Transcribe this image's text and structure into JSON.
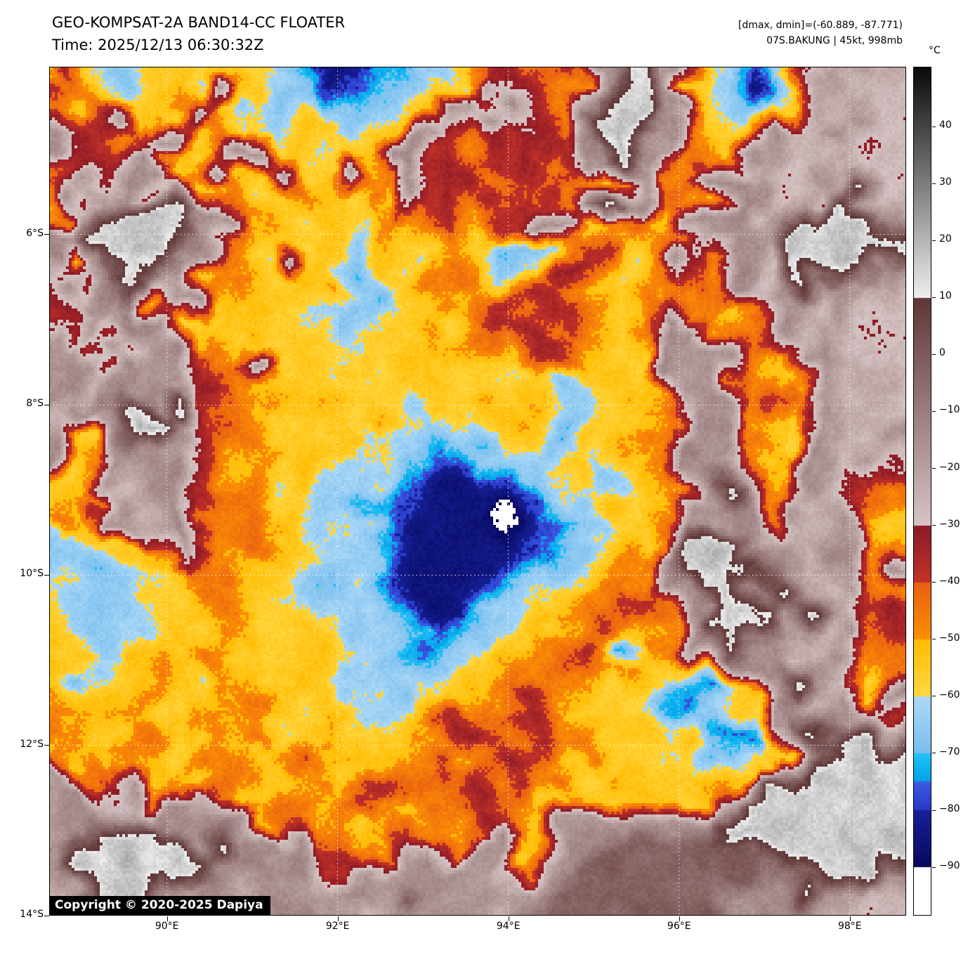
{
  "header": {
    "title": "GEO-KOMPSAT-2A BAND14-CC FLOATER",
    "time_line": "Time: 2025/12/13 06:30:32Z",
    "dmax_dmin": "[dmax, dmin]=(-60.889, -87.771)",
    "storm_line": "07S.BAKUNG | 45kt, 998mb"
  },
  "colorbar": {
    "unit_label": "°C"
  },
  "axes": {
    "lat_ticks": [
      {
        "value": 6,
        "label": "6°S"
      },
      {
        "value": 8,
        "label": "8°S"
      },
      {
        "value": 10,
        "label": "10°S"
      },
      {
        "value": 12,
        "label": "12°S"
      },
      {
        "value": 14,
        "label": "14°S"
      }
    ],
    "lon_ticks": [
      {
        "value": 90,
        "label": "90°E"
      },
      {
        "value": 92,
        "label": "92°E"
      },
      {
        "value": 94,
        "label": "94°E"
      },
      {
        "value": 96,
        "label": "96°E"
      },
      {
        "value": 98,
        "label": "98°E"
      }
    ]
  },
  "overlay": {
    "copyright": "Copyright © 2020-2025 Dapiya"
  },
  "chart_data": {
    "type": "heatmap",
    "description": "Enhanced infrared (BAND14) brightness-temperature satellite image of tropical cyclone 07S BAKUNG; cold convective cloud tops shown in yellow/orange/red through blues, warm surface in mauve/gray.",
    "satellite": "GEO-KOMPSAT-2A",
    "band": "BAND14-CC",
    "storm": {
      "id": "07S",
      "name": "BAKUNG",
      "intensity": "45kt",
      "pressure": "998mb",
      "estimated_center": {
        "lon_e": 93.3,
        "lat_s": 9.4
      }
    },
    "dmax_c": -60.889,
    "dmin_c": -87.771,
    "lat_range": [
      4.03,
      14.0
    ],
    "lon_range": [
      88.62,
      98.66
    ],
    "colorbar_ticks": [
      {
        "value": 40,
        "label": "40"
      },
      {
        "value": 30,
        "label": "30"
      },
      {
        "value": 20,
        "label": "20"
      },
      {
        "value": 10,
        "label": "10"
      },
      {
        "value": 0,
        "label": "0"
      },
      {
        "value": -10,
        "label": "−10"
      },
      {
        "value": -20,
        "label": "−20"
      },
      {
        "value": -30,
        "label": "−30"
      },
      {
        "value": -40,
        "label": "−40"
      },
      {
        "value": -50,
        "label": "−50"
      },
      {
        "value": -60,
        "label": "−60"
      },
      {
        "value": -70,
        "label": "−70"
      },
      {
        "value": -80,
        "label": "−80"
      },
      {
        "value": -90,
        "label": "−90"
      }
    ],
    "colormap": {
      "bands": [
        {
          "max": -90,
          "c1": [
            255,
            255,
            255
          ],
          "c2": [
            255,
            255,
            255
          ]
        },
        {
          "max": -80,
          "c1": [
            6,
            8,
            92
          ],
          "c2": [
            24,
            32,
            152
          ]
        },
        {
          "max": -75,
          "c1": [
            36,
            58,
            198
          ],
          "c2": [
            64,
            90,
            228
          ]
        },
        {
          "max": -70,
          "c1": [
            0,
            162,
            232
          ],
          "c2": [
            36,
            194,
            246
          ]
        },
        {
          "max": -60,
          "c1": [
            120,
            190,
            238
          ],
          "c2": [
            174,
            217,
            247
          ]
        },
        {
          "max": -50,
          "c1": [
            255,
            215,
            66
          ],
          "c2": [
            255,
            187,
            0
          ]
        },
        {
          "max": -40,
          "c1": [
            252,
            144,
            4
          ],
          "c2": [
            233,
            96,
            18
          ]
        },
        {
          "max": -30,
          "c1": [
            196,
            50,
            40
          ],
          "c2": [
            139,
            26,
            38
          ]
        },
        {
          "max": 10,
          "c1": [
            214,
            196,
            196
          ],
          "c2": [
            96,
            54,
            54
          ]
        },
        {
          "max": 50,
          "c1": [
            238,
            238,
            238
          ],
          "c2": [
            12,
            12,
            12
          ]
        }
      ]
    },
    "field": {
      "codes": {
        "N": -85,
        "B": -77,
        "c": -72,
        "b": -64,
        "y": -55,
        "o": -46,
        "r": -35,
        "p": -26,
        "m": -15,
        "d": -2,
        "g": 16,
        "E": -96
      },
      "rows": [
        "orybbyybyybcNNNNBcbbyrroommggmmycBcyppmp",
        "rooybyoymyybcNBBcbbyymrroymggmyycNBypmpp",
        "oyrmyoymybybbcbbbyymmrmromgggmmybcyyppmp",
        "mrrormmyoyybyybyymmrrmrrommgmmoyyymppmpp",
        "mrrrmooyommyybyymmrrorrormmgmmooymmppppp",
        "ormrmmyomyymyymyomrrrorrooyomoommmppmpgp",
        "omrmmrmyyoyyoyyoymrrorrromgmmooymmpmpgmp",
        "oomggggmmooyyyyyoyrryrrmmyyooymmmpmggggm",
        "mmgggggmooyyyyybyyyoybbbbrryyoommmmggggg",
        "mymgggmmoyymyybbyyyoobbyrroyyomommpggggm",
        "rmrmgmmyooyyyyybbyoooyorroyyoooommpgmmmp",
        "rrmmmymmyyyyybbbbyyoorrorroyymooyommpmpp",
        "mrmrmmyyyyyyyybyyyoyorrroroyommooompmppp",
        "mmrmrmmyoyyyyyyyyyyyooyrrooyymmmmoommppp",
        "mmmrmmmroomyyyyyyyyyyyyrroyyymmmooyomppp",
        "mmpmmmgrrooyyyyyyyyyyyyybyyyyommmoromppp",
        "pmmmgmgrooyyyyyyybyyyyyybbyyyoommooymppp",
        "myymggmrooyyyyybbbbbbyybbyyyoommmooymppm",
        "myommmmroyoyyybbbbBBbbbbyybyyommmoyompmp",
        "yyompmmroooyybbbbBNNBBbbbybbyoomgmoymprp",
        "yyyompmooooyybbcBBNNNNBBbbyyyommmmoompoo",
        "yoymmpmroooyybbbBNNNNENBcbbyyommmmompmoy",
        "bbyyyomroooyybbcBNNNNNBcbbyoyogggmmpmmoo",
        "bbbyyyooooyybbbbBNNNNBcbbyyoomggggmppmom",
        "ybbbyyyoooyybbbcBNNNBcbbyyooommggmgmpmoo",
        "ybbbbyyyooyyybbbcBNNbbbyyoorrommggmgmprr",
        "yybbbyyyooyyybbbbcBcbbyyoorooomgggmmpmor",
        "yyybyyyooyyyyybbbccbbyyoorocoommgmmpmpoo",
        "yybyyoyyooyyyybbbbbbyyooooooyyyymmmgmpyo",
        "ybyyooyyoooyyybbbbyyyoorooyyybccyymmpmym",
        "oyyooyyoooyyyyybbyrroorroyyyyccbyymmgmmr",
        "yoyyooyyoooyyyyyyoorroorooyyyyycBcyymggmm",
        "myoyoyyooyyooyyyooroorroyyoyyybcbyymgggg",
        "mmormyoyooyyooyrroorrorooyyyyyyyyygggggg",
        "mmmmmrmmoyyooyoroyoorroyyoyyyyyymggggggg",
        "mmggggmmmmyomooyorooomoymmmmmmmmgggggggg",
        "mggggggmgmmmmrroommommyommddddddddgggggg",
        "mgggggggmmmmmrrmmmmmmmommdddddddddddgggmm",
        "mmgggmmmmpmmmmmmmdmmmmmmddddddddddmgmmp",
        "pmmgmmpmmmpmmmmpmmmmmpmdddddddddmmmmmppp"
      ]
    }
  }
}
